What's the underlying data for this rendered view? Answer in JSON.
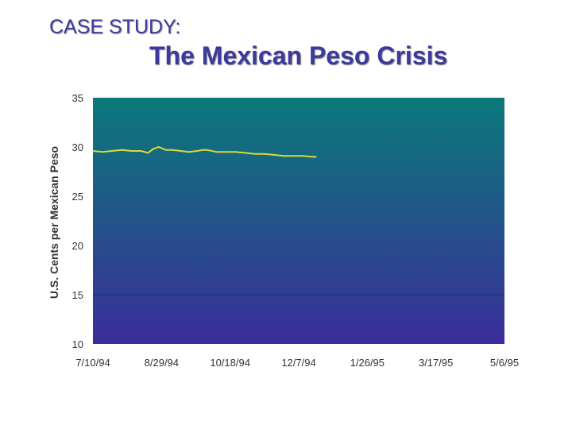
{
  "slide": {
    "heading": "CASE STUDY:",
    "title": "The Mexican Peso Crisis"
  },
  "colors": {
    "title": "#3c3a9c",
    "plot_top": "#0a7a7a",
    "plot_bottom": "#3b2d9a",
    "series_line": "#d8dc36",
    "gridline": "#1e2a66"
  },
  "chart_data": {
    "type": "line",
    "xlabel": "",
    "ylabel": "U.S. Cents per Mexican Peso",
    "ylim": [
      10,
      35
    ],
    "yticks": [
      10,
      15,
      20,
      25,
      30,
      35
    ],
    "xlim": [
      "1994-07-10",
      "1995-05-06"
    ],
    "xticks": [
      "7/10/94",
      "8/29/94",
      "10/18/94",
      "12/7/94",
      "1/26/95",
      "3/17/95",
      "5/6/95"
    ],
    "gridlines": [
      15
    ],
    "legend": "none",
    "series": [
      {
        "x": [
          "1994-07-10",
          "1994-07-17",
          "1994-07-24",
          "1994-07-31",
          "1994-08-07",
          "1994-08-14",
          "1994-08-19",
          "1994-08-23",
          "1994-08-27",
          "1994-09-01",
          "1994-09-06",
          "1994-09-12",
          "1994-09-18",
          "1994-09-24",
          "1994-09-28",
          "1994-10-01",
          "1994-10-08",
          "1994-10-15",
          "1994-10-22",
          "1994-10-29",
          "1994-11-05",
          "1994-11-12",
          "1994-11-19",
          "1994-11-26",
          "1994-12-03",
          "1994-12-10",
          "1994-12-17",
          "1994-12-20"
        ],
        "values": [
          29.6,
          29.5,
          29.6,
          29.7,
          29.6,
          29.6,
          29.4,
          29.8,
          30.0,
          29.7,
          29.7,
          29.6,
          29.5,
          29.6,
          29.7,
          29.7,
          29.5,
          29.5,
          29.5,
          29.4,
          29.3,
          29.3,
          29.2,
          29.1,
          29.1,
          29.1,
          29.0,
          29.0
        ]
      }
    ]
  }
}
